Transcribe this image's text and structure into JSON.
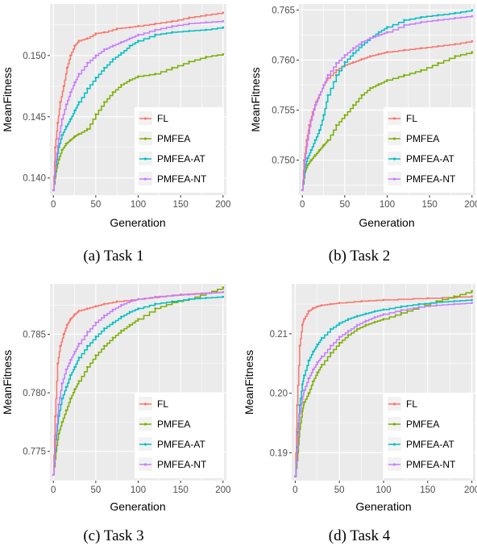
{
  "chart_data": [
    {
      "type": "line",
      "caption": "(a) Task 1",
      "xlabel": "Generation",
      "ylabel": "MeanFitness",
      "xlim": [
        -4,
        204
      ],
      "ylim": [
        0.1386,
        0.1542
      ],
      "x_ticks": [
        0,
        50,
        100,
        150,
        200
      ],
      "y_ticks": [
        0.14,
        0.145,
        0.15
      ],
      "y_tick_labels": [
        "0.140",
        "0.145",
        "0.150"
      ],
      "legend_position": "bottom-right",
      "series": [
        {
          "name": "FL",
          "color": "#F8766D",
          "x": [
            0,
            2,
            5,
            8,
            12,
            16,
            20,
            25,
            30,
            40,
            50,
            60,
            75,
            90,
            100,
            120,
            140,
            160,
            180,
            200
          ],
          "y": [
            0.139,
            0.1425,
            0.1445,
            0.1462,
            0.1475,
            0.149,
            0.15,
            0.1508,
            0.1512,
            0.1514,
            0.1518,
            0.1519,
            0.1522,
            0.1523,
            0.1524,
            0.1526,
            0.1528,
            0.1531,
            0.1533,
            0.1535
          ]
        },
        {
          "name": "PMFEA",
          "color": "#7CAE00",
          "x": [
            0,
            3,
            6,
            10,
            15,
            20,
            25,
            30,
            40,
            50,
            60,
            70,
            80,
            90,
            100,
            120,
            140,
            160,
            180,
            200
          ],
          "y": [
            0.139,
            0.1405,
            0.1415,
            0.1423,
            0.1428,
            0.1431,
            0.1434,
            0.1436,
            0.144,
            0.1452,
            0.1462,
            0.147,
            0.1476,
            0.148,
            0.1483,
            0.1485,
            0.149,
            0.1495,
            0.1499,
            0.1501
          ]
        },
        {
          "name": "PMFEA-AT",
          "color": "#00BFC4",
          "x": [
            0,
            3,
            6,
            10,
            15,
            20,
            25,
            30,
            40,
            50,
            60,
            70,
            80,
            90,
            100,
            120,
            140,
            160,
            180,
            200
          ],
          "y": [
            0.139,
            0.141,
            0.1425,
            0.1435,
            0.1442,
            0.1448,
            0.1455,
            0.1462,
            0.1473,
            0.1482,
            0.149,
            0.1497,
            0.1502,
            0.1508,
            0.1512,
            0.1517,
            0.1519,
            0.152,
            0.1521,
            0.1523
          ]
        },
        {
          "name": "PMFEA-NT",
          "color": "#C77CFF",
          "x": [
            0,
            3,
            6,
            10,
            15,
            20,
            25,
            30,
            40,
            50,
            60,
            70,
            80,
            90,
            100,
            120,
            140,
            160,
            180,
            200
          ],
          "y": [
            0.139,
            0.1415,
            0.1432,
            0.1448,
            0.146,
            0.147,
            0.1478,
            0.1485,
            0.1494,
            0.15,
            0.1505,
            0.1508,
            0.1511,
            0.1514,
            0.1517,
            0.1521,
            0.1524,
            0.1526,
            0.1527,
            0.1528
          ]
        }
      ]
    },
    {
      "type": "line",
      "caption": "(b) Task 2",
      "xlabel": "Generation",
      "ylabel": "MeanFitness",
      "xlim": [
        -4,
        204
      ],
      "ylim": [
        0.7465,
        0.7656
      ],
      "x_ticks": [
        0,
        50,
        100,
        150,
        200
      ],
      "y_ticks": [
        0.75,
        0.755,
        0.76,
        0.765
      ],
      "y_tick_labels": [
        "0.750",
        "0.755",
        "0.760",
        "0.765"
      ],
      "legend_position": "bottom-right",
      "series": [
        {
          "name": "FL",
          "color": "#F8766D",
          "x": [
            0,
            2,
            5,
            8,
            12,
            16,
            20,
            25,
            30,
            40,
            50,
            60,
            70,
            80,
            90,
            100,
            120,
            140,
            160,
            180,
            200
          ],
          "y": [
            0.747,
            0.75,
            0.752,
            0.7535,
            0.7548,
            0.7558,
            0.7565,
            0.7575,
            0.7582,
            0.759,
            0.7595,
            0.7598,
            0.7601,
            0.7604,
            0.7606,
            0.7608,
            0.761,
            0.7612,
            0.7614,
            0.7616,
            0.7619
          ]
        },
        {
          "name": "PMFEA",
          "color": "#7CAE00",
          "x": [
            0,
            3,
            6,
            10,
            15,
            20,
            25,
            30,
            40,
            50,
            60,
            70,
            80,
            90,
            100,
            120,
            140,
            160,
            180,
            200
          ],
          "y": [
            0.747,
            0.7488,
            0.7495,
            0.75,
            0.7505,
            0.751,
            0.7515,
            0.752,
            0.7535,
            0.7545,
            0.7555,
            0.7565,
            0.7572,
            0.7576,
            0.758,
            0.7585,
            0.759,
            0.7597,
            0.7604,
            0.7608
          ]
        },
        {
          "name": "PMFEA-AT",
          "color": "#00BFC4",
          "x": [
            0,
            3,
            6,
            10,
            15,
            20,
            25,
            30,
            40,
            50,
            60,
            70,
            80,
            90,
            100,
            120,
            140,
            160,
            180,
            200
          ],
          "y": [
            0.747,
            0.7492,
            0.7502,
            0.751,
            0.752,
            0.753,
            0.7545,
            0.7565,
            0.7585,
            0.7598,
            0.7607,
            0.7615,
            0.7622,
            0.7628,
            0.7633,
            0.764,
            0.7643,
            0.7645,
            0.7647,
            0.765
          ]
        },
        {
          "name": "PMFEA-NT",
          "color": "#C77CFF",
          "x": [
            0,
            3,
            6,
            10,
            15,
            20,
            25,
            30,
            40,
            50,
            60,
            70,
            80,
            90,
            100,
            120,
            140,
            160,
            180,
            200
          ],
          "y": [
            0.747,
            0.75,
            0.752,
            0.754,
            0.7555,
            0.7565,
            0.7575,
            0.7585,
            0.7597,
            0.7605,
            0.7612,
            0.7618,
            0.7622,
            0.7625,
            0.7628,
            0.7635,
            0.7638,
            0.764,
            0.7642,
            0.7644
          ]
        }
      ]
    },
    {
      "type": "line",
      "caption": "(c) Task 3",
      "xlabel": "Generation",
      "ylabel": "MeanFitness",
      "xlim": [
        -4,
        204
      ],
      "ylim": [
        0.7725,
        0.7893
      ],
      "x_ticks": [
        0,
        50,
        100,
        150,
        200
      ],
      "y_ticks": [
        0.775,
        0.78,
        0.785
      ],
      "y_tick_labels": [
        "0.775",
        "0.780",
        "0.785"
      ],
      "legend_position": "bottom-right",
      "series": [
        {
          "name": "FL",
          "color": "#F8766D",
          "x": [
            0,
            2,
            5,
            8,
            12,
            16,
            20,
            25,
            30,
            40,
            50,
            60,
            75,
            100,
            125,
            150,
            175,
            200
          ],
          "y": [
            0.773,
            0.778,
            0.7825,
            0.784,
            0.785,
            0.7858,
            0.7863,
            0.7867,
            0.787,
            0.7872,
            0.7874,
            0.7876,
            0.7878,
            0.788,
            0.7882,
            0.7884,
            0.7885,
            0.7886
          ]
        },
        {
          "name": "PMFEA",
          "color": "#7CAE00",
          "x": [
            0,
            3,
            6,
            10,
            15,
            20,
            25,
            30,
            40,
            50,
            60,
            70,
            80,
            90,
            100,
            120,
            140,
            160,
            180,
            200
          ],
          "y": [
            0.773,
            0.775,
            0.7765,
            0.7775,
            0.7785,
            0.7795,
            0.7803,
            0.781,
            0.7822,
            0.7832,
            0.784,
            0.7847,
            0.7853,
            0.7858,
            0.7863,
            0.7872,
            0.7877,
            0.788,
            0.7885,
            0.789
          ]
        },
        {
          "name": "PMFEA-AT",
          "color": "#00BFC4",
          "x": [
            0,
            3,
            6,
            10,
            15,
            20,
            25,
            30,
            40,
            50,
            60,
            70,
            80,
            90,
            100,
            120,
            140,
            160,
            180,
            200
          ],
          "y": [
            0.773,
            0.776,
            0.778,
            0.7795,
            0.7805,
            0.7815,
            0.7822,
            0.783,
            0.784,
            0.7848,
            0.7855,
            0.786,
            0.7865,
            0.7869,
            0.7872,
            0.7876,
            0.7878,
            0.788,
            0.7881,
            0.7882
          ]
        },
        {
          "name": "PMFEA-NT",
          "color": "#C77CFF",
          "x": [
            0,
            3,
            6,
            10,
            15,
            20,
            25,
            30,
            40,
            50,
            60,
            70,
            80,
            90,
            100,
            120,
            140,
            160,
            180,
            200
          ],
          "y": [
            0.773,
            0.7765,
            0.779,
            0.7808,
            0.782,
            0.7828,
            0.7835,
            0.7842,
            0.7852,
            0.786,
            0.7866,
            0.7871,
            0.7875,
            0.7878,
            0.788,
            0.7882,
            0.7883,
            0.7884,
            0.7885,
            0.7886
          ]
        }
      ]
    },
    {
      "type": "line",
      "caption": "(d) Task 4",
      "xlabel": "Generation",
      "ylabel": "MeanFitness",
      "xlim": [
        -4,
        204
      ],
      "ylim": [
        0.1853,
        0.2184
      ],
      "x_ticks": [
        0,
        50,
        100,
        150,
        200
      ],
      "y_ticks": [
        0.19,
        0.2,
        0.21
      ],
      "y_tick_labels": [
        "0.19",
        "0.20",
        "0.21"
      ],
      "legend_position": "bottom-right",
      "series": [
        {
          "name": "FL",
          "color": "#F8766D",
          "x": [
            0,
            2,
            5,
            8,
            10,
            15,
            20,
            25,
            30,
            40,
            50,
            75,
            100,
            150,
            200
          ],
          "y": [
            0.186,
            0.198,
            0.208,
            0.2115,
            0.2125,
            0.2138,
            0.2143,
            0.2146,
            0.2148,
            0.215,
            0.2152,
            0.2155,
            0.2157,
            0.216,
            0.2163
          ]
        },
        {
          "name": "PMFEA",
          "color": "#7CAE00",
          "x": [
            0,
            3,
            5,
            8,
            10,
            15,
            20,
            25,
            30,
            40,
            50,
            60,
            70,
            80,
            90,
            100,
            120,
            140,
            160,
            180,
            200
          ],
          "y": [
            0.186,
            0.19,
            0.194,
            0.197,
            0.1985,
            0.2,
            0.202,
            0.2035,
            0.2048,
            0.2068,
            0.2085,
            0.2098,
            0.2108,
            0.2115,
            0.212,
            0.2125,
            0.2135,
            0.2145,
            0.2155,
            0.2163,
            0.2172
          ]
        },
        {
          "name": "PMFEA-AT",
          "color": "#00BFC4",
          "x": [
            0,
            3,
            5,
            8,
            10,
            15,
            20,
            25,
            30,
            40,
            50,
            60,
            70,
            80,
            90,
            100,
            120,
            140,
            160,
            180,
            200
          ],
          "y": [
            0.186,
            0.1935,
            0.198,
            0.2015,
            0.203,
            0.2055,
            0.207,
            0.2082,
            0.2093,
            0.2108,
            0.2118,
            0.2125,
            0.213,
            0.2134,
            0.2138,
            0.2141,
            0.2146,
            0.215,
            0.2153,
            0.2155,
            0.2157
          ]
        },
        {
          "name": "PMFEA-NT",
          "color": "#C77CFF",
          "x": [
            0,
            3,
            5,
            8,
            10,
            15,
            20,
            25,
            30,
            40,
            50,
            60,
            70,
            80,
            90,
            100,
            120,
            140,
            160,
            180,
            200
          ],
          "y": [
            0.186,
            0.193,
            0.1965,
            0.199,
            0.2005,
            0.2025,
            0.204,
            0.2052,
            0.2062,
            0.208,
            0.2095,
            0.2105,
            0.2115,
            0.2122,
            0.2128,
            0.2133,
            0.214,
            0.2145,
            0.2148,
            0.215,
            0.2152
          ]
        }
      ]
    }
  ]
}
